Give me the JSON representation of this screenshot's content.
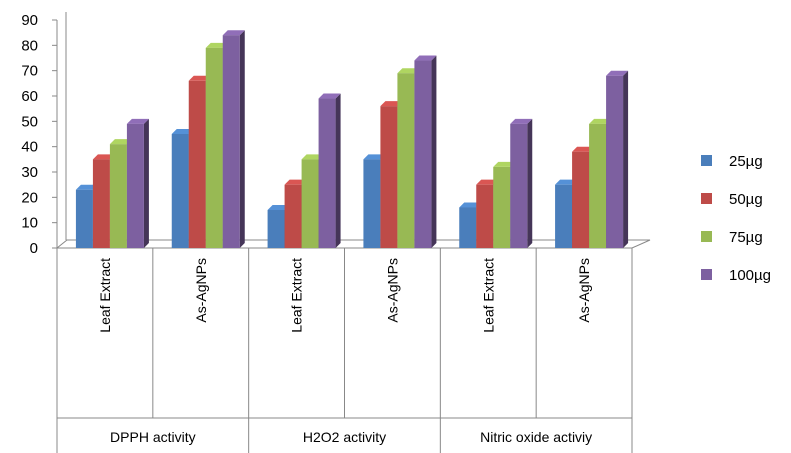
{
  "chart_data": {
    "type": "bar",
    "groups": [
      "DPPH activity",
      "H2O2 activity",
      "Nitric oxide activiy"
    ],
    "categories": [
      "Leaf Extract",
      "As-AgNPs",
      "Leaf Extract",
      "As-AgNPs",
      "Leaf Extract",
      "As-AgNPs"
    ],
    "series": [
      {
        "name": "25µg",
        "color": "#4a7ebb",
        "values": [
          23,
          45,
          15,
          35,
          16,
          25
        ]
      },
      {
        "name": "50µg",
        "color": "#be4b48",
        "values": [
          35,
          66,
          25,
          56,
          25,
          38
        ]
      },
      {
        "name": "75µg",
        "color": "#98b954",
        "values": [
          41,
          79,
          35,
          69,
          32,
          49
        ]
      },
      {
        "name": "100µg",
        "color": "#7d60a0",
        "values": [
          49,
          84,
          59,
          74,
          49,
          68
        ]
      }
    ],
    "yticks": [
      0,
      10,
      20,
      30,
      40,
      50,
      60,
      70,
      80,
      90
    ],
    "ylim": [
      0,
      90
    ],
    "legend_position": "right",
    "grid": false
  }
}
